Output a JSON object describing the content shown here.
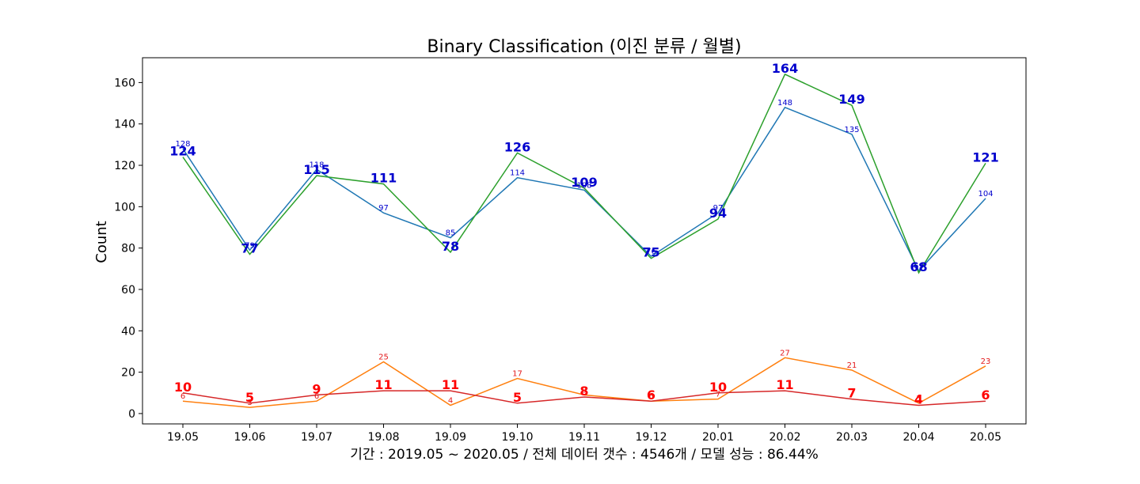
{
  "chart_data": {
    "type": "line",
    "title": "Binary Classification (이진 분류 / 월별)",
    "xlabel": "기간 : 2019.05 ~ 2020.05    /    전체 데이터 갯수 : 4546개    /    모델 성능 : 86.44%",
    "ylabel": "Count",
    "ylim": [
      -5,
      172
    ],
    "yticks": [
      0,
      20,
      40,
      60,
      80,
      100,
      120,
      140,
      160
    ],
    "categories": [
      "19.05",
      "19.06",
      "19.07",
      "19.08",
      "19.09",
      "19.10",
      "19.11",
      "19.12",
      "20.01",
      "20.02",
      "20.03",
      "20.04",
      "20.05"
    ],
    "grid": false,
    "legend": "none",
    "series": [
      {
        "color": "#1f77b4",
        "label_color": "#0000cd",
        "label_style": "small",
        "values": [
          128,
          79,
          118,
          97,
          85,
          114,
          108,
          76,
          97,
          148,
          135,
          69,
          104
        ]
      },
      {
        "color": "#ff7f0e",
        "label_color": "#e31a1c",
        "label_style": "small",
        "values": [
          6,
          3,
          6,
          25,
          4,
          17,
          9,
          6,
          7,
          27,
          21,
          5,
          23
        ]
      },
      {
        "color": "#2ca02c",
        "label_color": "#0000cd",
        "label_style": "big",
        "values": [
          124,
          77,
          115,
          111,
          78,
          126,
          109,
          75,
          94,
          164,
          149,
          68,
          121
        ]
      },
      {
        "color": "#d62728",
        "label_color": "#ff0000",
        "label_style": "big",
        "values": [
          10,
          5,
          9,
          11,
          11,
          5,
          8,
          6,
          10,
          11,
          7,
          4,
          6
        ]
      }
    ]
  }
}
